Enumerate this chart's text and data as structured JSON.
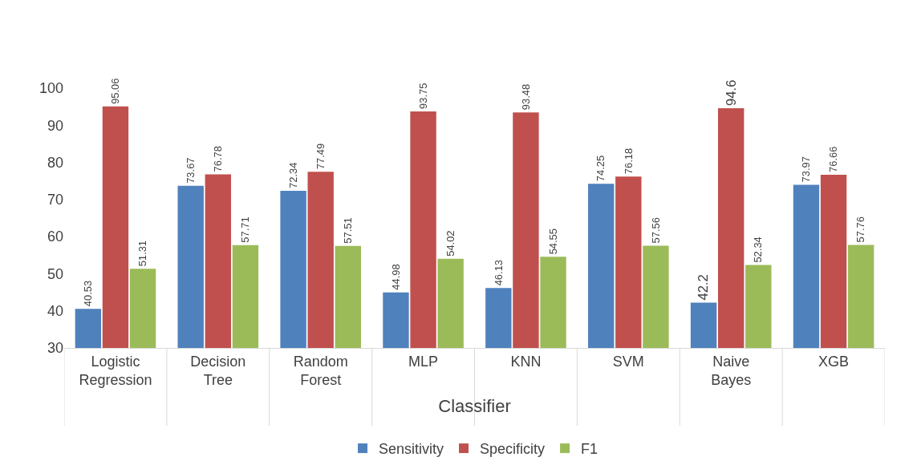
{
  "chart_data": {
    "type": "bar",
    "xlabel": "Classifier",
    "categories": [
      "Logistic Regression",
      "Decision Tree",
      "Random Forest",
      "MLP",
      "KNN",
      "SVM",
      "Naive Bayes",
      "XGB"
    ],
    "series": [
      {
        "name": "Sensitivity",
        "color": "#4f81bd",
        "values": [
          40.53,
          73.67,
          72.34,
          44.98,
          46.13,
          74.25,
          42.2,
          73.97
        ]
      },
      {
        "name": "Specificity",
        "color": "#c0504d",
        "values": [
          95.06,
          76.78,
          77.49,
          93.75,
          93.48,
          76.18,
          94.6,
          76.66
        ]
      },
      {
        "name": "F1",
        "color": "#9bbb59",
        "values": [
          51.31,
          57.71,
          57.51,
          54.02,
          54.55,
          57.56,
          52.34,
          57.76
        ]
      }
    ],
    "ylim": [
      30,
      100
    ],
    "yticks": [
      30,
      40,
      50,
      60,
      70,
      80,
      90,
      100
    ],
    "data_labels": true,
    "grid": false,
    "legend": "bottom"
  }
}
